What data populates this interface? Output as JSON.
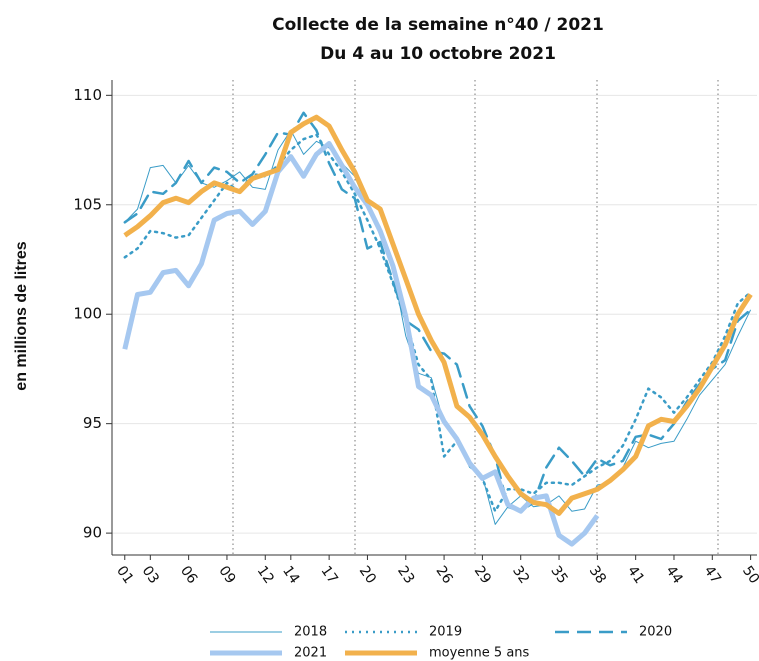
{
  "chart_data": {
    "type": "line",
    "title": "Collecte de la semaine n°40 / 2021",
    "subtitle": "Du 4 au 10 octobre 2021",
    "y_label": "en millions de litres",
    "x": [
      1,
      2,
      3,
      4,
      5,
      6,
      7,
      8,
      9,
      10,
      11,
      12,
      13,
      14,
      15,
      16,
      17,
      18,
      19,
      20,
      21,
      22,
      23,
      24,
      25,
      26,
      27,
      28,
      29,
      30,
      31,
      32,
      33,
      34,
      35,
      36,
      37,
      38,
      39,
      40,
      41,
      42,
      43,
      44,
      45,
      46,
      47,
      48,
      49,
      50
    ],
    "xlim": [
      0,
      50.5
    ],
    "xticks": [
      {
        "value": 1,
        "label": "01"
      },
      {
        "value": 3,
        "label": "03"
      },
      {
        "value": 6,
        "label": "06"
      },
      {
        "value": 9,
        "label": "09"
      },
      12,
      14,
      17,
      20,
      23,
      26,
      29,
      32,
      35,
      38,
      41,
      44,
      47,
      50
    ],
    "ylim": [
      89,
      110.7
    ],
    "yticks": [
      90,
      95,
      100,
      105,
      110
    ],
    "grid": true,
    "series": [
      {
        "name": "2018",
        "color": "#3a9cc7",
        "style": "thin",
        "values": [
          104.2,
          104.8,
          106.7,
          106.8,
          106.0,
          106.8,
          106.0,
          105.8,
          106.1,
          106.5,
          105.8,
          105.7,
          107.5,
          108.4,
          107.3,
          107.9,
          107.6,
          106.9,
          106.3,
          104.9,
          104.0,
          102.0,
          99.0,
          97.3,
          97.1,
          95.0,
          94.4,
          93.0,
          92.6,
          90.4,
          91.2,
          91.7,
          91.2,
          91.3,
          91.7,
          91.0,
          91.1,
          92.2,
          92.3,
          93.0,
          94.2,
          93.9,
          94.1,
          94.2,
          95.2,
          96.3,
          97.0,
          97.7,
          99.0,
          100.2
        ]
      },
      {
        "name": "2019",
        "color": "#3a9cc7",
        "style": "dotted",
        "values": [
          102.6,
          103.0,
          103.8,
          103.7,
          103.5,
          103.6,
          104.4,
          105.2,
          106.0,
          105.6,
          106.4,
          106.3,
          106.8,
          107.5,
          108.0,
          108.2,
          107.3,
          106.5,
          105.5,
          104.3,
          103.0,
          101.4,
          99.7,
          97.7,
          97.0,
          93.5,
          94.2,
          93.2,
          92.5,
          91.0,
          92.0,
          92.0,
          91.8,
          92.3,
          92.3,
          92.2,
          92.6,
          93.0,
          93.3,
          94.0,
          95.2,
          96.6,
          96.2,
          95.5,
          96.2,
          97.0,
          97.8,
          99.0,
          100.5,
          101.0
        ]
      },
      {
        "name": "2020",
        "color": "#3a9cc7",
        "style": "dashed",
        "values": [
          104.2,
          104.6,
          105.6,
          105.5,
          106.0,
          107.0,
          106.0,
          106.7,
          106.5,
          106.0,
          106.4,
          107.3,
          108.3,
          108.2,
          109.2,
          108.4,
          106.9,
          105.7,
          105.3,
          103.0,
          103.3,
          101.5,
          99.7,
          99.3,
          98.3,
          98.2,
          97.7,
          95.8,
          94.9,
          93.5,
          91.2,
          91.0,
          91.4,
          93.0,
          93.9,
          93.3,
          92.6,
          93.4,
          93.1,
          93.3,
          94.4,
          94.5,
          94.3,
          95.0,
          96.0,
          96.8,
          97.5,
          97.9,
          99.7,
          100.2
        ]
      },
      {
        "name": "2021",
        "color": "#a6c8f0",
        "style": "thick",
        "values": [
          98.4,
          100.9,
          101.0,
          101.9,
          102.0,
          101.3,
          102.3,
          104.3,
          104.6,
          104.7,
          104.1,
          104.7,
          106.5,
          107.2,
          106.3,
          107.3,
          107.8,
          106.8,
          105.8,
          105.0,
          103.8,
          102.2,
          99.9,
          96.7,
          96.3,
          95.1,
          94.3,
          93.2,
          92.5,
          92.8,
          91.3,
          91.0,
          91.6,
          91.7,
          89.9,
          89.5,
          90.0,
          90.8,
          null,
          null,
          null,
          null,
          null,
          null,
          null,
          null,
          null,
          null,
          null,
          null
        ]
      },
      {
        "name": "moyenne 5 ans",
        "color": "#f2b14c",
        "style": "thick",
        "values": [
          103.6,
          104.0,
          104.5,
          105.1,
          105.3,
          105.1,
          105.6,
          106.0,
          105.8,
          105.6,
          106.2,
          106.4,
          106.6,
          108.3,
          108.7,
          109.0,
          108.6,
          107.5,
          106.5,
          105.2,
          104.8,
          103.2,
          101.6,
          100.0,
          98.8,
          97.8,
          95.8,
          95.3,
          94.5,
          93.5,
          92.6,
          91.8,
          91.4,
          91.3,
          90.9,
          91.6,
          91.8,
          92.0,
          92.4,
          92.9,
          93.5,
          94.9,
          95.2,
          95.1,
          95.8,
          96.6,
          97.6,
          98.6,
          100.0,
          100.9
        ]
      }
    ]
  }
}
